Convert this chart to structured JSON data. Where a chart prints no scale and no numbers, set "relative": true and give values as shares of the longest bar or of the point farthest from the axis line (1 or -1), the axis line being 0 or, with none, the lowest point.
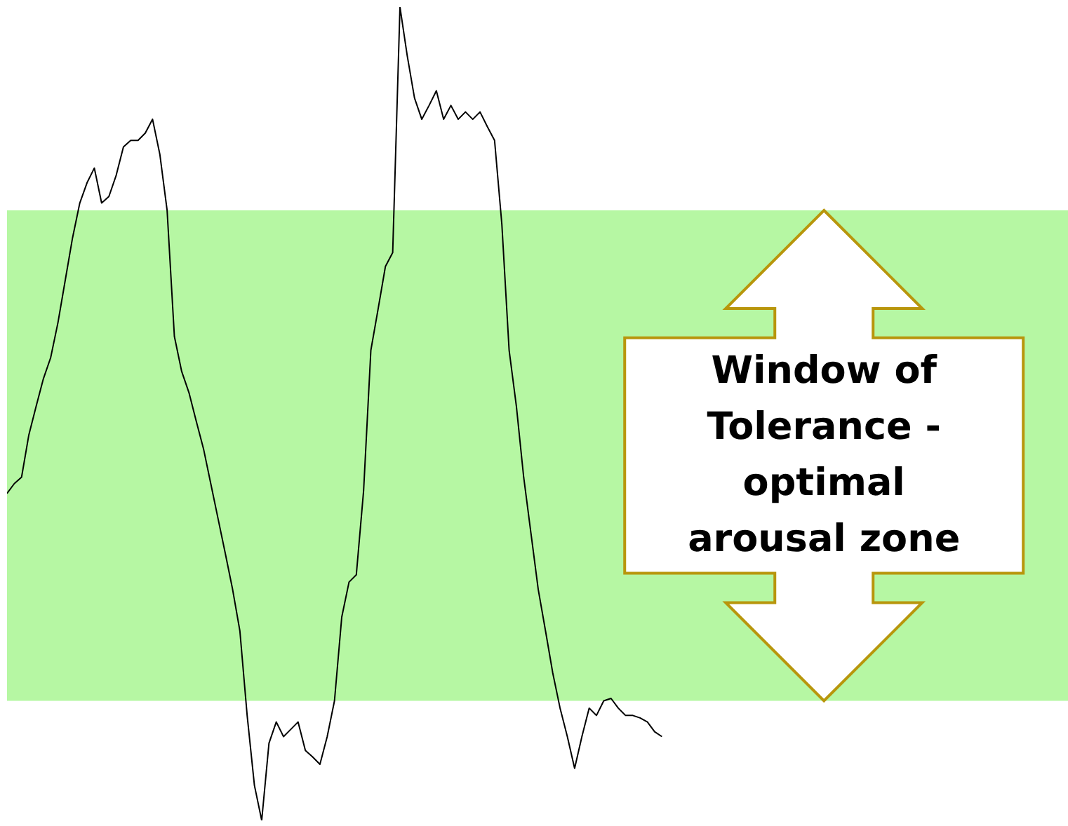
{
  "chart_data": {
    "type": "line",
    "relative": true,
    "categories": [
      null,
      null,
      null,
      null,
      null,
      null,
      null,
      null,
      null,
      null,
      null,
      null,
      null,
      null,
      null,
      null,
      null,
      null,
      null,
      null,
      null,
      null,
      null,
      null,
      null,
      null,
      null,
      null,
      null,
      null,
      null,
      null,
      null,
      null,
      null,
      null,
      null,
      null,
      null,
      null,
      null,
      null,
      null,
      null,
      null,
      null,
      null,
      null,
      null,
      null,
      null,
      null,
      null,
      null,
      null,
      null,
      null,
      null,
      null,
      null,
      null,
      null,
      null,
      null,
      null,
      null,
      null,
      null,
      null,
      null,
      null,
      null,
      null,
      null,
      null,
      null,
      null,
      null,
      null,
      null,
      null,
      null,
      null,
      null,
      null,
      null,
      null,
      null,
      null,
      null,
      null
    ],
    "series": [
      {
        "color": "#000000",
        "values": [
          0.402,
          0.414,
          0.422,
          0.474,
          0.509,
          0.543,
          0.569,
          0.612,
          0.664,
          0.716,
          0.759,
          0.784,
          0.802,
          0.759,
          0.767,
          0.793,
          0.828,
          0.836,
          0.836,
          0.845,
          0.862,
          0.819,
          0.75,
          0.595,
          0.552,
          0.526,
          0.491,
          0.457,
          0.414,
          0.371,
          0.328,
          0.284,
          0.233,
          0.129,
          0.043,
          0,
          0.095,
          0.121,
          0.103,
          0.112,
          0.121,
          0.086,
          0.078,
          0.069,
          0.103,
          0.147,
          0.25,
          0.293,
          0.302,
          0.405,
          0.578,
          0.629,
          0.681,
          0.698,
          1,
          0.94,
          0.888,
          0.862,
          0.879,
          0.897,
          0.862,
          0.879,
          0.862,
          0.871,
          0.862,
          0.871,
          0.853,
          0.836,
          0.733,
          0.578,
          0.509,
          0.422,
          0.353,
          0.284,
          0.233,
          0.181,
          0.138,
          0.103,
          0.064,
          0.103,
          0.138,
          0.129,
          0.147,
          0.15,
          0.138,
          0.129,
          0.129,
          0.126,
          0.121,
          0.109,
          0.103
        ]
      }
    ],
    "bands": [
      {
        "axis": "y",
        "from": 0.147,
        "to": 0.75,
        "color": "#b6f7a3",
        "label": "Window of Tolerance - optimal arousal zone"
      }
    ],
    "marker": "none",
    "grid": false,
    "legend": false
  }
}
